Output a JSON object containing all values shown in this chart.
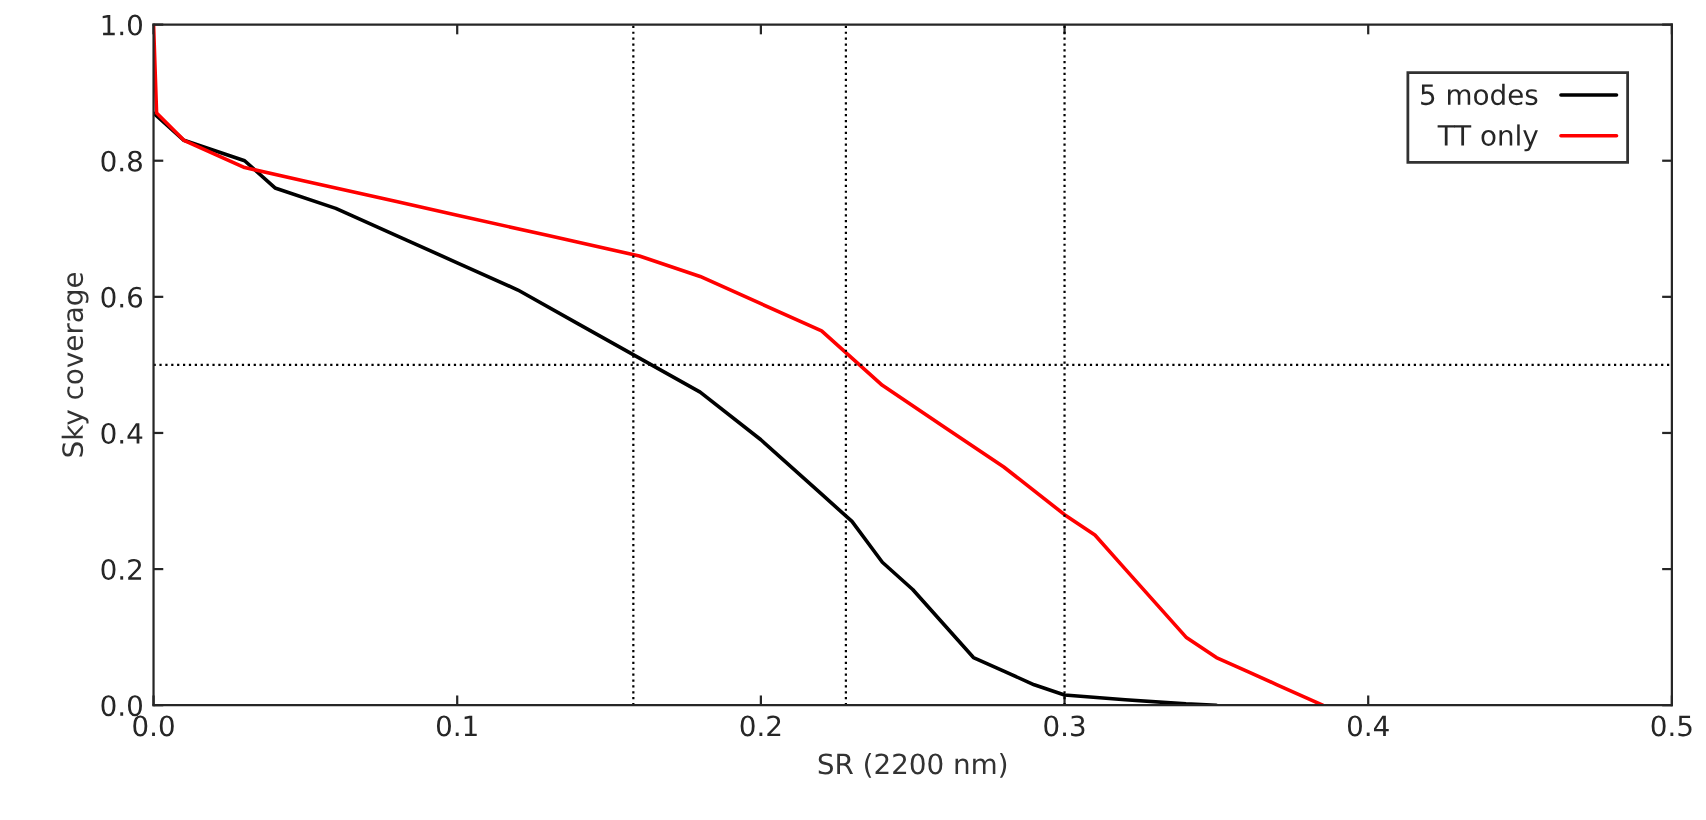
{
  "chart_data": {
    "type": "line",
    "xlabel": "SR (2200 nm)",
    "ylabel": "Sky coverage",
    "xlim": [
      0,
      0.5
    ],
    "ylim": [
      0,
      1
    ],
    "xticks": [
      {
        "value": 0,
        "label": "0.0"
      },
      0.1,
      0.2,
      0.3,
      0.4,
      0.5
    ],
    "yticks": [
      {
        "value": 0,
        "label": "0.0"
      },
      0.2,
      0.4,
      0.6,
      0.8,
      {
        "value": 1,
        "label": "1.0"
      }
    ],
    "grid": false,
    "legend": "top right",
    "line_style": "solid",
    "ref_lines": [
      {
        "axis": "x",
        "value": 0.158,
        "line_style": "dotted",
        "color": "#000000"
      },
      {
        "axis": "x",
        "value": 0.228,
        "line_style": "dotted",
        "color": "#000000"
      },
      {
        "axis": "x",
        "value": 0.3,
        "line_style": "dotted",
        "color": "#000000"
      },
      {
        "axis": "y",
        "value": 0.5,
        "line_style": "dotted",
        "color": "#000000"
      }
    ],
    "series": [
      {
        "name": "5 modes",
        "color": "#000000",
        "x": [
          0,
          0.01,
          0.03,
          0.04,
          0.06,
          0.08,
          0.1,
          0.12,
          0.14,
          0.16,
          0.18,
          0.2,
          0.22,
          0.23,
          0.24,
          0.25,
          0.26,
          0.27,
          0.28,
          0.29,
          0.3,
          0.32,
          0.34,
          0.35
        ],
        "values": [
          0.87,
          0.83,
          0.8,
          0.76,
          0.73,
          0.69,
          0.65,
          0.61,
          0.56,
          0.51,
          0.46,
          0.39,
          0.31,
          0.27,
          0.21,
          0.17,
          0.12,
          0.07,
          0.05,
          0.03,
          0.015,
          0.008,
          0.002,
          0
        ]
      },
      {
        "name": "TT only",
        "color": "#ff0000",
        "x": [
          0,
          0.001,
          0.01,
          0.03,
          0.05,
          0.08,
          0.1,
          0.13,
          0.16,
          0.18,
          0.2,
          0.22,
          0.23,
          0.24,
          0.26,
          0.28,
          0.3,
          0.31,
          0.32,
          0.33,
          0.34,
          0.35,
          0.36,
          0.37,
          0.38,
          0.385
        ],
        "values": [
          1.0,
          0.87,
          0.83,
          0.79,
          0.77,
          0.74,
          0.72,
          0.69,
          0.66,
          0.63,
          0.59,
          0.55,
          0.51,
          0.47,
          0.41,
          0.35,
          0.28,
          0.25,
          0.2,
          0.15,
          0.1,
          0.07,
          0.05,
          0.03,
          0.01,
          0
        ]
      }
    ]
  }
}
